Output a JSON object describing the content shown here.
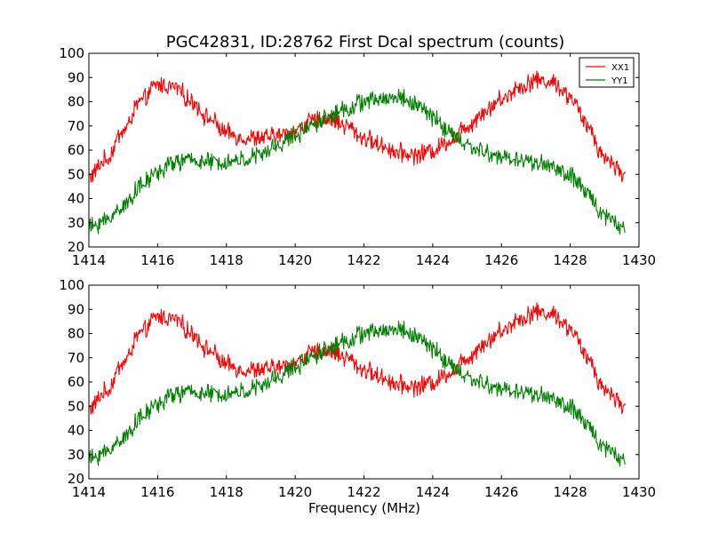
{
  "chart_data": [
    {
      "type": "line",
      "title": "PGC42831, ID:28762 First Dcal spectrum (counts)",
      "xlabel": "",
      "ylabel": "",
      "xlim": [
        1414,
        1430
      ],
      "ylim": [
        20,
        100
      ],
      "xticks": [
        1414,
        1416,
        1418,
        1420,
        1422,
        1424,
        1426,
        1428,
        1430
      ],
      "yticks": [
        20,
        30,
        40,
        50,
        60,
        70,
        80,
        90,
        100
      ],
      "legend": {
        "placement": "top-right",
        "entries": [
          "XX1",
          "YY1"
        ]
      },
      "series": [
        {
          "name": "XX1",
          "color": "#ff0000",
          "x": [
            1414.0,
            1414.5,
            1415.0,
            1415.5,
            1416.0,
            1416.5,
            1417.0,
            1417.5,
            1418.0,
            1418.5,
            1419.0,
            1419.5,
            1420.0,
            1420.5,
            1421.0,
            1421.5,
            1422.0,
            1422.5,
            1423.0,
            1423.5,
            1424.0,
            1424.5,
            1425.0,
            1425.5,
            1426.0,
            1426.5,
            1427.0,
            1427.5,
            1428.0,
            1428.5,
            1429.0,
            1429.6
          ],
          "y": [
            49,
            56,
            68,
            80,
            87,
            86,
            80,
            73,
            67,
            65,
            65,
            66,
            68,
            72,
            73,
            70,
            65,
            62,
            59,
            58,
            60,
            64,
            70,
            76,
            81,
            86,
            89,
            88,
            82,
            70,
            57,
            50
          ]
        },
        {
          "name": "YY1",
          "color": "#007f00",
          "x": [
            1414.0,
            1414.5,
            1415.0,
            1415.5,
            1416.0,
            1416.5,
            1417.0,
            1417.5,
            1418.0,
            1418.5,
            1419.0,
            1419.5,
            1420.0,
            1420.5,
            1421.0,
            1421.5,
            1422.0,
            1422.5,
            1423.0,
            1423.5,
            1424.0,
            1424.5,
            1425.0,
            1425.5,
            1426.0,
            1426.5,
            1427.0,
            1427.5,
            1428.0,
            1428.5,
            1429.0,
            1429.6
          ],
          "y": [
            28,
            31,
            37,
            45,
            51,
            55,
            56,
            55,
            55,
            56,
            58,
            62,
            66,
            71,
            74,
            77,
            80,
            81,
            82,
            79,
            74,
            67,
            62,
            59,
            57,
            56,
            55,
            53,
            49,
            42,
            33,
            28
          ]
        }
      ]
    },
    {
      "type": "line",
      "title": "",
      "xlabel": "Frequency (MHz)",
      "ylabel": "",
      "xlim": [
        1414,
        1430
      ],
      "ylim": [
        20,
        100
      ],
      "xticks": [
        1414,
        1416,
        1418,
        1420,
        1422,
        1424,
        1426,
        1428,
        1430
      ],
      "yticks": [
        20,
        30,
        40,
        50,
        60,
        70,
        80,
        90,
        100
      ],
      "series": [
        {
          "name": "XX1",
          "color": "#ff0000",
          "x": [
            1414.0,
            1414.5,
            1415.0,
            1415.5,
            1416.0,
            1416.5,
            1417.0,
            1417.5,
            1418.0,
            1418.5,
            1419.0,
            1419.5,
            1420.0,
            1420.5,
            1421.0,
            1421.5,
            1422.0,
            1422.5,
            1423.0,
            1423.5,
            1424.0,
            1424.5,
            1425.0,
            1425.5,
            1426.0,
            1426.5,
            1427.0,
            1427.5,
            1428.0,
            1428.5,
            1429.0,
            1429.6
          ],
          "y": [
            49,
            56,
            68,
            80,
            87,
            86,
            80,
            73,
            67,
            65,
            65,
            66,
            68,
            72,
            73,
            70,
            65,
            62,
            59,
            58,
            60,
            64,
            70,
            76,
            81,
            86,
            89,
            88,
            82,
            70,
            57,
            50
          ]
        },
        {
          "name": "YY1",
          "color": "#007f00",
          "x": [
            1414.0,
            1414.5,
            1415.0,
            1415.5,
            1416.0,
            1416.5,
            1417.0,
            1417.5,
            1418.0,
            1418.5,
            1419.0,
            1419.5,
            1420.0,
            1420.5,
            1421.0,
            1421.5,
            1422.0,
            1422.5,
            1423.0,
            1423.5,
            1424.0,
            1424.5,
            1425.0,
            1425.5,
            1426.0,
            1426.5,
            1427.0,
            1427.5,
            1428.0,
            1428.5,
            1429.0,
            1429.6
          ],
          "y": [
            28,
            31,
            37,
            45,
            51,
            55,
            56,
            55,
            55,
            56,
            58,
            62,
            66,
            71,
            74,
            77,
            80,
            81,
            82,
            79,
            74,
            67,
            62,
            59,
            57,
            56,
            55,
            53,
            49,
            42,
            33,
            28
          ]
        }
      ]
    }
  ]
}
